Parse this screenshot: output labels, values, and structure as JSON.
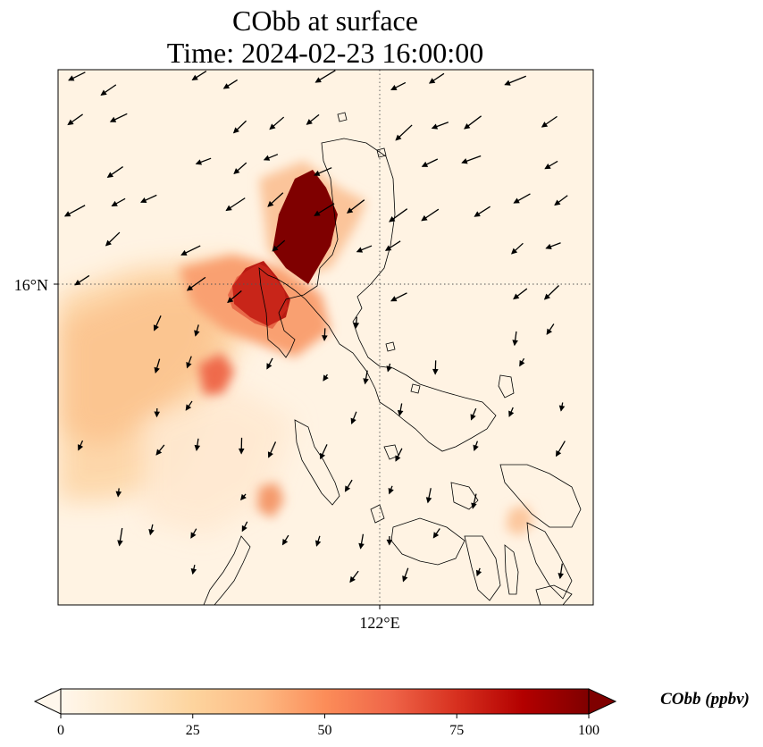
{
  "title": {
    "line1": "CObb at surface",
    "line2": "Time: 2024-02-23 16:00:00"
  },
  "map": {
    "lat_label": "16°N",
    "lon_label": "122°E",
    "gridline_style": "dotted",
    "coastline_color": "#000000"
  },
  "colorbar": {
    "label": "CObb (ppbv)",
    "ticks": [
      "0",
      "25",
      "50",
      "75",
      "100"
    ],
    "tick_values": [
      0,
      25,
      50,
      75,
      100
    ],
    "range": [
      0,
      100
    ],
    "extend": "both",
    "colormap": "OrRd",
    "stops": [
      "#fff7ec",
      "#fee8c8",
      "#fdd49e",
      "#fdbb84",
      "#fc8d59",
      "#ef6548",
      "#d7301f",
      "#b30000",
      "#7f0000"
    ]
  },
  "field": {
    "plumes": [
      {
        "name": "main-fire-plume",
        "value": 100
      },
      {
        "name": "secondary-plume",
        "value": 100
      },
      {
        "name": "westward-drift",
        "value": 40
      },
      {
        "name": "southwest-spot",
        "value": 70
      },
      {
        "name": "south-spot",
        "value": 45
      }
    ]
  }
}
